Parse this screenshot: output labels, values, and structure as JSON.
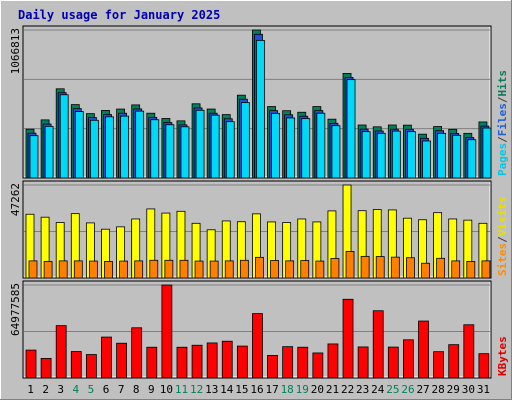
{
  "chart_data": {
    "type": "bar",
    "title": "Daily usage for January 2025",
    "categories": [
      "1",
      "2",
      "3",
      "4",
      "5",
      "6",
      "7",
      "8",
      "9",
      "10",
      "11",
      "12",
      "13",
      "14",
      "15",
      "16",
      "17",
      "18",
      "19",
      "20",
      "21",
      "22",
      "23",
      "24",
      "25",
      "26",
      "27",
      "28",
      "29",
      "30",
      "31"
    ],
    "weekend_days": [
      "4",
      "5",
      "11",
      "12",
      "18",
      "19",
      "25",
      "26"
    ],
    "panels": [
      {
        "id": "hits",
        "ymax_label": "1066813",
        "ymax": 1066813,
        "legend": [
          {
            "text": "Pages",
            "color": "#00c8e8"
          },
          {
            "text": "/",
            "color": "#404040"
          },
          {
            "text": "Files",
            "color": "#1f5fd6"
          },
          {
            "text": "/",
            "color": "#404040"
          },
          {
            "text": "Hits",
            "color": "#0a7a5a"
          }
        ],
        "series": [
          {
            "name": "Hits",
            "color": "#00805a",
            "values": [
              352000,
              419000,
              643000,
              529000,
              464000,
              487000,
              497000,
              527000,
              467000,
              429000,
              412000,
              535000,
              497000,
              457000,
              597000,
              1066813,
              515000,
              485000,
              474000,
              515000,
              424000,
              754000,
              382000,
              369000,
              382000,
              381000,
              316000,
              371000,
              351000,
              322000,
              404000
            ]
          },
          {
            "name": "Files",
            "color": "#2050d8",
            "values": [
              323000,
              389000,
              615000,
              500000,
              436000,
              458000,
              467000,
              498000,
              437000,
              400000,
              383000,
              505000,
              467000,
              427000,
              568000,
              1036000,
              486000,
              456000,
              445000,
              486000,
              394000,
              725000,
              352000,
              339000,
              352000,
              351000,
              286000,
              341000,
              321000,
              292000,
              374000
            ]
          },
          {
            "name": "Pages",
            "color": "#00d8f8",
            "values": [
              305000,
              372000,
              600000,
              479000,
              416000,
              441000,
              446000,
              482000,
              420000,
              384000,
              369000,
              488000,
              453000,
              406000,
              544000,
              992000,
              466000,
              433000,
              428000,
              467000,
              377000,
              709000,
              334000,
              322000,
              338000,
              334000,
              267000,
              322000,
              308000,
              276000,
              360000
            ]
          }
        ]
      },
      {
        "id": "visits",
        "ymax_label": "47262",
        "ymax": 47262,
        "legend": [
          {
            "text": "Sites",
            "color": "#ff8c00"
          },
          {
            "text": "/",
            "color": "#404040"
          },
          {
            "text": "Visits",
            "color": "#e8e000"
          }
        ],
        "series": [
          {
            "name": "Visits",
            "color": "#ffff00",
            "values": [
              32400,
              30900,
              28200,
              32700,
              28000,
              24800,
              26000,
              30000,
              35100,
              33000,
              33900,
              27800,
              24500,
              29000,
              28600,
              32600,
              28500,
              28200,
              30000,
              28500,
              34100,
              47262,
              34200,
              34800,
              34600,
              30400,
              29600,
              33200,
              30000,
              29400,
              27800
            ]
          },
          {
            "name": "Sites",
            "color": "#ff8000",
            "values": [
              8700,
              8400,
              8700,
              8700,
              8600,
              8400,
              8600,
              8700,
              9000,
              9000,
              9000,
              8600,
              8600,
              8700,
              9000,
              10500,
              8900,
              8700,
              8900,
              8600,
              9900,
              13500,
              11000,
              10900,
              10600,
              10300,
              7500,
              10000,
              8700,
              8400,
              8700
            ]
          }
        ]
      },
      {
        "id": "kbytes",
        "ymax_label": "64977585",
        "ymax": 64977585,
        "legend": [
          {
            "text": "KBytes",
            "color": "#e00000"
          }
        ],
        "series": [
          {
            "name": "KBytes",
            "color": "#ff0000",
            "values": [
              19500,
              13700,
              36600,
              18500,
              16400,
              28600,
              24300,
              35100,
              21500,
              64977585,
              21500,
              22900,
              24500,
              25700,
              22300,
              45000,
              15800,
              21900,
              21500,
              17500,
              23800,
              55000,
              21700,
              47000,
              21600,
              26700,
              39800,
              18400,
              23300,
              37200,
              17000
            ]
          }
        ]
      }
    ],
    "kbytes_scale": 1000
  }
}
